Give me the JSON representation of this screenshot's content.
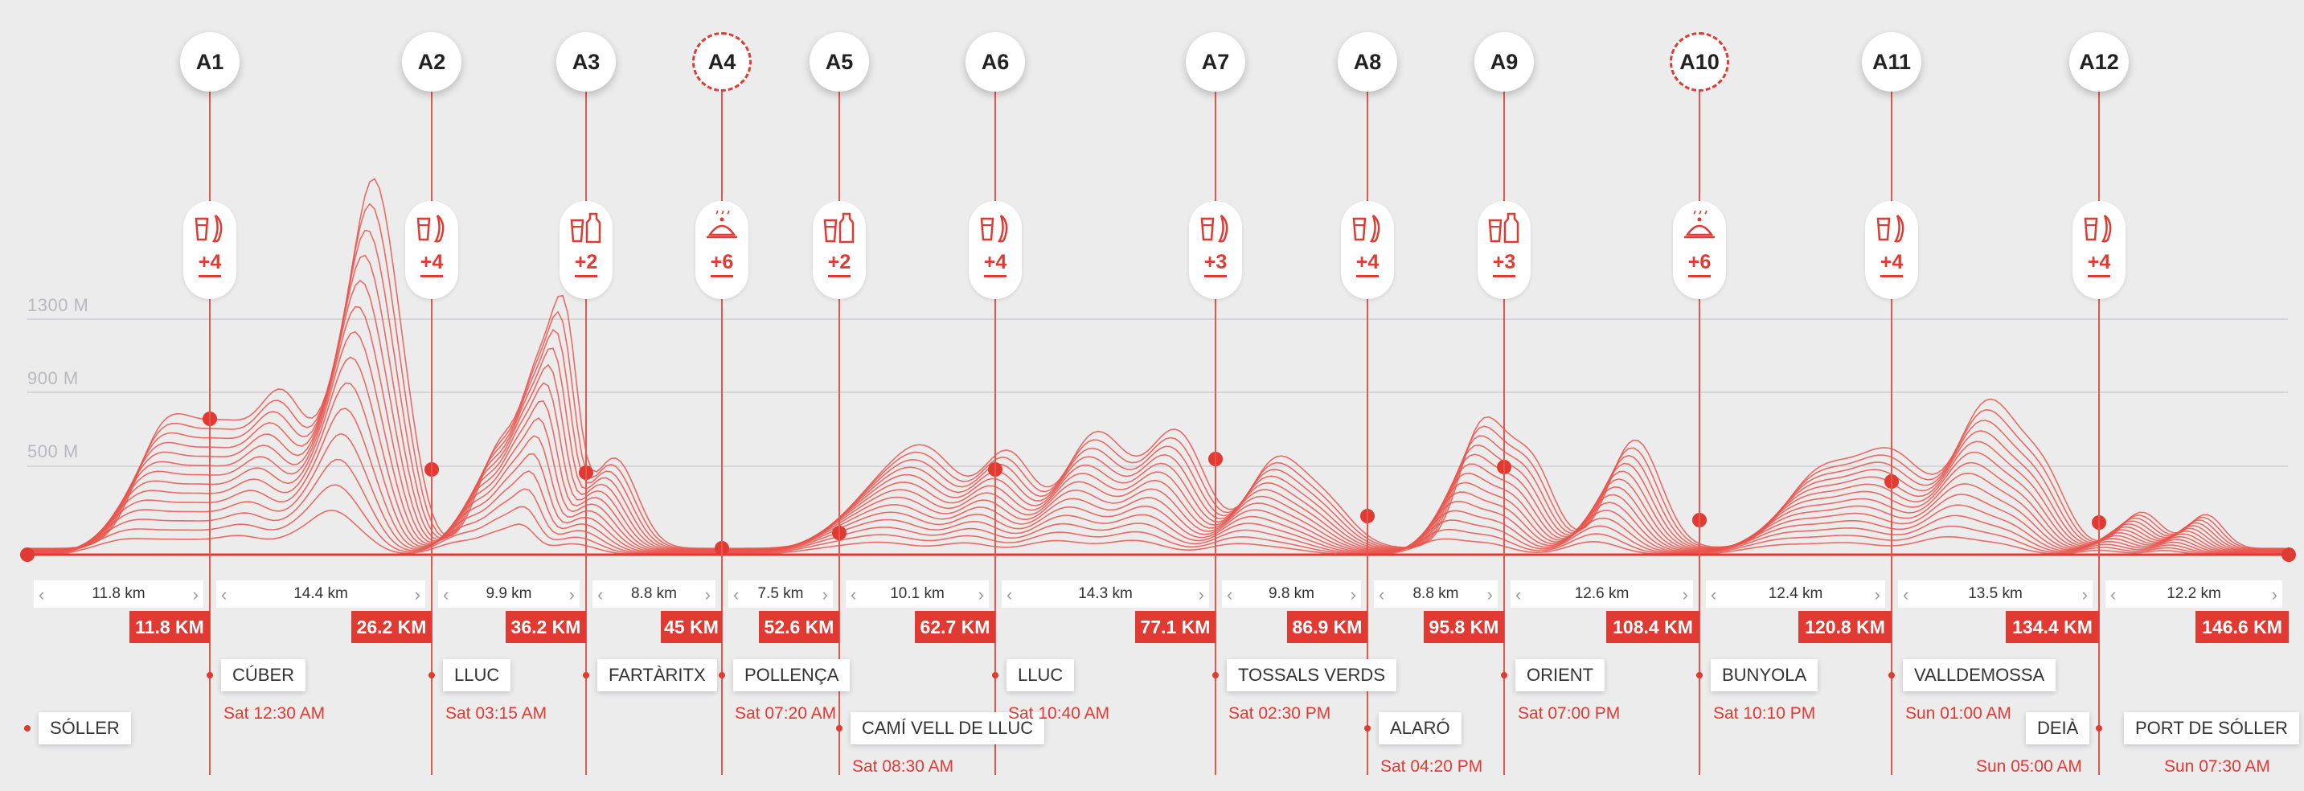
{
  "elevation_labels": [
    "1300 M",
    "900 M",
    "500 M"
  ],
  "aid_stations": [
    {
      "label": "A1",
      "major": false,
      "supply": "drink",
      "count": "+4"
    },
    {
      "label": "A2",
      "major": false,
      "supply": "drink",
      "count": "+4"
    },
    {
      "label": "A3",
      "major": false,
      "supply": "bottle",
      "count": "+2"
    },
    {
      "label": "A4",
      "major": true,
      "supply": "meal",
      "count": "+6"
    },
    {
      "label": "A5",
      "major": false,
      "supply": "bottle",
      "count": "+2"
    },
    {
      "label": "A6",
      "major": false,
      "supply": "drink",
      "count": "+4"
    },
    {
      "label": "A7",
      "major": false,
      "supply": "drink",
      "count": "+3"
    },
    {
      "label": "A8",
      "major": false,
      "supply": "drink",
      "count": "+4"
    },
    {
      "label": "A9",
      "major": false,
      "supply": "bottle",
      "count": "+3"
    },
    {
      "label": "A10",
      "major": true,
      "supply": "meal",
      "count": "+6"
    },
    {
      "label": "A11",
      "major": false,
      "supply": "drink",
      "count": "+4"
    },
    {
      "label": "A12",
      "major": false,
      "supply": "drink",
      "count": "+4"
    }
  ],
  "segments": [
    "11.8 km",
    "14.4 km",
    "9.9 km",
    "8.8 km",
    "7.5 km",
    "10.1 km",
    "14.3 km",
    "9.8 km",
    "8.8 km",
    "12.6 km",
    "12.4 km",
    "13.5 km",
    "12.2 km"
  ],
  "segment_arrows": {
    "left": "‹",
    "right": "›"
  },
  "cumulative_km": [
    "11.8 KM",
    "26.2 KM",
    "36.2 KM",
    "45 KM",
    "52.6 KM",
    "62.7 KM",
    "77.1 KM",
    "86.9 KM",
    "95.8 KM",
    "108.4 KM",
    "120.8 KM",
    "134.4 KM",
    "146.6 KM"
  ],
  "locations": [
    {
      "name": "SÓLLER",
      "time": ""
    },
    {
      "name": "CÚBER",
      "time": "Sat 12:30 AM"
    },
    {
      "name": "LLUC",
      "time": "Sat 03:15 AM"
    },
    {
      "name": "FARTÀRITX",
      "time": ""
    },
    {
      "name": "POLLENÇA",
      "time": "Sat 07:20 AM"
    },
    {
      "name": "CAMÍ VELL DE LLUC",
      "time": "Sat 08:30 AM"
    },
    {
      "name": "LLUC",
      "time": "Sat 10:40 AM"
    },
    {
      "name": "TOSSALS VERDS",
      "time": "Sat 02:30 PM"
    },
    {
      "name": "ALARÓ",
      "time": "Sat 04:20 PM"
    },
    {
      "name": "ORIENT",
      "time": "Sat 07:00 PM"
    },
    {
      "name": "BUNYOLA",
      "time": "Sat 10:10 PM"
    },
    {
      "name": "VALLDEMOSSA",
      "time": "Sun 01:00 AM"
    },
    {
      "name": "DEIÀ",
      "time": "Sun 05:00 AM"
    },
    {
      "name": "PORT DE SÓLLER",
      "time": "Sun 07:30 AM"
    }
  ],
  "colors": {
    "accent": "#e03a32",
    "background": "#ececed",
    "line": "#e8554c"
  }
}
